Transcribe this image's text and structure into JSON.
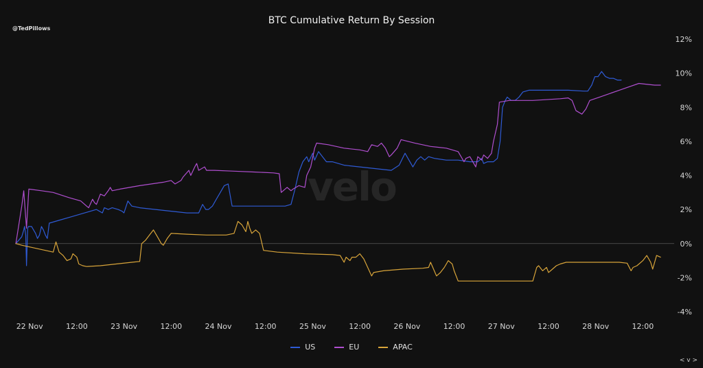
{
  "handle": "@TedPillows",
  "watermark": "velo",
  "corner_toggle": "< v >",
  "chart_data": {
    "type": "line",
    "title": "BTC Cumulative Return By Session",
    "y_tick_labels": [
      "12%",
      "10%",
      "8%",
      "6%",
      "4%",
      "2%",
      "0%",
      "-2%",
      "-4%"
    ],
    "y_ticks": [
      12,
      10,
      8,
      6,
      4,
      2,
      0,
      -2,
      -4
    ],
    "ylim": [
      -4,
      12
    ],
    "x_tick_labels": [
      "22 Nov",
      "12:00",
      "23 Nov",
      "12:00",
      "24 Nov",
      "12:00",
      "25 Nov",
      "12:00",
      "26 Nov",
      "12:00",
      "27 Nov",
      "12:00",
      "28 Nov",
      "12:00"
    ],
    "x_ticks": [
      0,
      12,
      24,
      36,
      48,
      60,
      72,
      84,
      96,
      108,
      120,
      132,
      144,
      156
    ],
    "xlim": [
      -3.7,
      161
    ],
    "zero_line": true,
    "grid": false,
    "legend_position": "bottom-center",
    "series": [
      {
        "name": "US",
        "color": "#2f5bd6",
        "points": [
          [
            -3.5,
            0.0
          ],
          [
            -2.0,
            0.4
          ],
          [
            -1.5,
            0.8
          ],
          [
            -1.3,
            1.0
          ],
          [
            -1.0,
            0.5
          ],
          [
            -0.8,
            -1.3
          ],
          [
            -0.5,
            0.9
          ],
          [
            -0.3,
            1.0
          ],
          [
            0.5,
            1.0
          ],
          [
            1.5,
            0.6
          ],
          [
            2.0,
            0.3
          ],
          [
            2.5,
            0.5
          ],
          [
            3.0,
            1.0
          ],
          [
            3.5,
            0.8
          ],
          [
            4.0,
            0.5
          ],
          [
            4.5,
            0.3
          ],
          [
            5.0,
            1.2
          ],
          [
            8.0,
            1.4
          ],
          [
            11.0,
            1.6
          ],
          [
            14.0,
            1.8
          ],
          [
            17.0,
            2.0
          ],
          [
            18.5,
            1.8
          ],
          [
            19.0,
            2.1
          ],
          [
            20.0,
            2.0
          ],
          [
            21.0,
            2.1
          ],
          [
            22.5,
            2.0
          ],
          [
            23.5,
            1.9
          ],
          [
            24.0,
            1.8
          ],
          [
            25.0,
            2.5
          ],
          [
            26.0,
            2.2
          ],
          [
            28.0,
            2.1
          ],
          [
            32.0,
            2.0
          ],
          [
            36.0,
            1.9
          ],
          [
            40.0,
            1.8
          ],
          [
            43.0,
            1.8
          ],
          [
            44.0,
            2.3
          ],
          [
            44.8,
            2.0
          ],
          [
            45.5,
            2.0
          ],
          [
            46.5,
            2.2
          ],
          [
            47.5,
            2.6
          ],
          [
            48.5,
            3.0
          ],
          [
            49.5,
            3.4
          ],
          [
            50.5,
            3.5
          ],
          [
            51.5,
            2.2
          ],
          [
            55.0,
            2.2
          ],
          [
            60.0,
            2.2
          ],
          [
            65.0,
            2.2
          ],
          [
            66.5,
            2.3
          ],
          [
            67.5,
            3.2
          ],
          [
            68.5,
            4.2
          ],
          [
            69.5,
            4.8
          ],
          [
            70.5,
            5.1
          ],
          [
            71.0,
            4.8
          ],
          [
            72.0,
            5.3
          ],
          [
            72.5,
            4.9
          ],
          [
            73.5,
            5.4
          ],
          [
            74.5,
            5.1
          ],
          [
            75.5,
            4.8
          ],
          [
            77.0,
            4.8
          ],
          [
            80.0,
            4.6
          ],
          [
            84.0,
            4.5
          ],
          [
            88.0,
            4.4
          ],
          [
            92.0,
            4.3
          ],
          [
            94.0,
            4.6
          ],
          [
            95.5,
            5.3
          ],
          [
            96.5,
            4.9
          ],
          [
            97.5,
            4.5
          ],
          [
            98.5,
            4.9
          ],
          [
            99.5,
            5.1
          ],
          [
            100.5,
            4.9
          ],
          [
            101.5,
            5.1
          ],
          [
            103.0,
            5.0
          ],
          [
            106.0,
            4.9
          ],
          [
            109.0,
            4.9
          ],
          [
            112.0,
            4.8
          ],
          [
            114.0,
            4.8
          ],
          [
            115.0,
            5.0
          ],
          [
            115.5,
            4.7
          ],
          [
            116.5,
            4.8
          ],
          [
            117.0,
            4.8
          ],
          [
            118.0,
            4.8
          ],
          [
            119.0,
            5.0
          ],
          [
            119.7,
            6.0
          ],
          [
            120.3,
            8.0
          ],
          [
            121.0,
            8.4
          ],
          [
            121.5,
            8.6
          ],
          [
            122.5,
            8.4
          ],
          [
            123.5,
            8.4
          ],
          [
            124.5,
            8.6
          ],
          [
            125.5,
            8.9
          ],
          [
            127.0,
            9.0
          ],
          [
            132.0,
            9.0
          ],
          [
            137.0,
            9.0
          ],
          [
            141.0,
            8.95
          ],
          [
            142.0,
            8.95
          ],
          [
            143.0,
            9.3
          ],
          [
            143.8,
            9.8
          ],
          [
            144.6,
            9.8
          ],
          [
            145.5,
            10.1
          ],
          [
            146.5,
            9.8
          ],
          [
            147.5,
            9.7
          ],
          [
            148.5,
            9.7
          ],
          [
            149.5,
            9.6
          ],
          [
            150.5,
            9.6
          ]
        ]
      },
      {
        "name": "EU",
        "color": "#b04fd0",
        "points": [
          [
            -3.5,
            0.0
          ],
          [
            -2.0,
            2.2
          ],
          [
            -1.5,
            3.1
          ],
          [
            -0.8,
            0.9
          ],
          [
            -0.2,
            3.2
          ],
          [
            3.0,
            3.1
          ],
          [
            6.0,
            3.0
          ],
          [
            10.0,
            2.7
          ],
          [
            13.0,
            2.5
          ],
          [
            14.5,
            2.2
          ],
          [
            15.0,
            2.1
          ],
          [
            16.0,
            2.6
          ],
          [
            16.5,
            2.4
          ],
          [
            17.0,
            2.3
          ],
          [
            18.0,
            2.9
          ],
          [
            19.0,
            2.8
          ],
          [
            20.0,
            3.1
          ],
          [
            20.5,
            3.3
          ],
          [
            21.0,
            3.1
          ],
          [
            23.0,
            3.2
          ],
          [
            28.0,
            3.4
          ],
          [
            34.0,
            3.6
          ],
          [
            36.0,
            3.7
          ],
          [
            37.0,
            3.5
          ],
          [
            38.5,
            3.7
          ],
          [
            39.0,
            3.9
          ],
          [
            40.5,
            4.3
          ],
          [
            41.0,
            4.0
          ],
          [
            42.0,
            4.5
          ],
          [
            42.5,
            4.7
          ],
          [
            43.0,
            4.3
          ],
          [
            44.5,
            4.5
          ],
          [
            45.0,
            4.3
          ],
          [
            47.0,
            4.3
          ],
          [
            52.0,
            4.25
          ],
          [
            57.0,
            4.2
          ],
          [
            62.0,
            4.15
          ],
          [
            63.5,
            4.1
          ],
          [
            64.0,
            3.0
          ],
          [
            64.5,
            3.1
          ],
          [
            65.5,
            3.3
          ],
          [
            66.5,
            3.1
          ],
          [
            67.0,
            3.2
          ],
          [
            68.5,
            3.4
          ],
          [
            70.0,
            3.3
          ],
          [
            70.5,
            4.0
          ],
          [
            71.5,
            4.5
          ],
          [
            72.5,
            5.6
          ],
          [
            73.0,
            5.9
          ],
          [
            76.0,
            5.8
          ],
          [
            80.0,
            5.6
          ],
          [
            84.0,
            5.5
          ],
          [
            86.0,
            5.4
          ],
          [
            87.0,
            5.8
          ],
          [
            88.5,
            5.7
          ],
          [
            89.5,
            5.9
          ],
          [
            90.5,
            5.6
          ],
          [
            91.5,
            5.1
          ],
          [
            92.0,
            5.2
          ],
          [
            93.5,
            5.6
          ],
          [
            94.5,
            6.1
          ],
          [
            98.0,
            5.9
          ],
          [
            102.0,
            5.7
          ],
          [
            106.0,
            5.6
          ],
          [
            109.0,
            5.4
          ],
          [
            110.5,
            4.8
          ],
          [
            111.0,
            5.0
          ],
          [
            112.0,
            5.1
          ],
          [
            113.5,
            4.5
          ],
          [
            114.0,
            5.1
          ],
          [
            115.0,
            4.9
          ],
          [
            115.5,
            5.2
          ],
          [
            116.5,
            5.0
          ],
          [
            117.5,
            5.3
          ],
          [
            118.0,
            6.0
          ],
          [
            119.0,
            7.0
          ],
          [
            119.5,
            8.3
          ],
          [
            122.0,
            8.4
          ],
          [
            128.0,
            8.4
          ],
          [
            135.0,
            8.5
          ],
          [
            137.0,
            8.55
          ],
          [
            138.0,
            8.4
          ],
          [
            139.0,
            7.8
          ],
          [
            140.5,
            7.6
          ],
          [
            141.5,
            7.9
          ],
          [
            142.5,
            8.4
          ],
          [
            145.0,
            8.6
          ],
          [
            150.0,
            9.0
          ],
          [
            155.0,
            9.4
          ],
          [
            159.0,
            9.3
          ],
          [
            160.5,
            9.3
          ]
        ]
      },
      {
        "name": "APAC",
        "color": "#d9a53a",
        "points": [
          [
            -3.5,
            0.0
          ],
          [
            -2.0,
            -0.1
          ],
          [
            0.0,
            -0.2
          ],
          [
            2.0,
            -0.3
          ],
          [
            4.0,
            -0.4
          ],
          [
            6.0,
            -0.5
          ],
          [
            6.7,
            0.1
          ],
          [
            7.5,
            -0.5
          ],
          [
            8.5,
            -0.7
          ],
          [
            9.5,
            -1.0
          ],
          [
            10.5,
            -0.9
          ],
          [
            11.0,
            -0.6
          ],
          [
            12.0,
            -0.8
          ],
          [
            12.5,
            -1.2
          ],
          [
            13.5,
            -1.3
          ],
          [
            14.5,
            -1.35
          ],
          [
            18.0,
            -1.3
          ],
          [
            22.0,
            -1.2
          ],
          [
            26.0,
            -1.1
          ],
          [
            28.0,
            -1.05
          ],
          [
            28.5,
            0.0
          ],
          [
            29.5,
            0.2
          ],
          [
            30.5,
            0.5
          ],
          [
            31.5,
            0.8
          ],
          [
            32.5,
            0.4
          ],
          [
            33.5,
            0.0
          ],
          [
            34.0,
            -0.1
          ],
          [
            35.0,
            0.3
          ],
          [
            36.0,
            0.6
          ],
          [
            40.0,
            0.55
          ],
          [
            45.0,
            0.5
          ],
          [
            50.0,
            0.5
          ],
          [
            52.0,
            0.6
          ],
          [
            53.0,
            1.3
          ],
          [
            53.5,
            1.2
          ],
          [
            54.0,
            1.1
          ],
          [
            55.0,
            0.7
          ],
          [
            55.5,
            1.3
          ],
          [
            56.0,
            0.9
          ],
          [
            56.5,
            0.6
          ],
          [
            57.5,
            0.8
          ],
          [
            58.5,
            0.6
          ],
          [
            59.5,
            -0.4
          ],
          [
            63.0,
            -0.5
          ],
          [
            70.0,
            -0.6
          ],
          [
            77.0,
            -0.65
          ],
          [
            79.0,
            -0.7
          ],
          [
            80.0,
            -1.1
          ],
          [
            80.5,
            -0.8
          ],
          [
            81.5,
            -1.0
          ],
          [
            82.0,
            -0.8
          ],
          [
            83.0,
            -0.8
          ],
          [
            84.0,
            -0.6
          ],
          [
            85.0,
            -0.9
          ],
          [
            86.0,
            -1.4
          ],
          [
            87.0,
            -1.9
          ],
          [
            87.5,
            -1.7
          ],
          [
            90.0,
            -1.6
          ],
          [
            95.0,
            -1.5
          ],
          [
            100.0,
            -1.45
          ],
          [
            101.5,
            -1.4
          ],
          [
            102.0,
            -1.1
          ],
          [
            103.5,
            -1.9
          ],
          [
            104.5,
            -1.7
          ],
          [
            105.5,
            -1.4
          ],
          [
            106.5,
            -1.0
          ],
          [
            107.5,
            -1.2
          ],
          [
            108.0,
            -1.6
          ],
          [
            109.0,
            -2.2
          ],
          [
            112.0,
            -2.2
          ],
          [
            116.0,
            -2.2
          ],
          [
            120.0,
            -2.2
          ],
          [
            124.0,
            -2.2
          ],
          [
            126.0,
            -2.2
          ],
          [
            128.0,
            -2.2
          ],
          [
            129.0,
            -1.4
          ],
          [
            129.5,
            -1.3
          ],
          [
            130.5,
            -1.6
          ],
          [
            131.5,
            -1.4
          ],
          [
            132.0,
            -1.7
          ],
          [
            133.0,
            -1.5
          ],
          [
            134.0,
            -1.3
          ],
          [
            135.0,
            -1.2
          ],
          [
            136.5,
            -1.1
          ],
          [
            140.0,
            -1.1
          ],
          [
            145.0,
            -1.1
          ],
          [
            150.0,
            -1.1
          ],
          [
            152.0,
            -1.15
          ],
          [
            153.0,
            -1.6
          ],
          [
            153.5,
            -1.4
          ],
          [
            154.5,
            -1.3
          ],
          [
            156.0,
            -1.0
          ],
          [
            157.0,
            -0.7
          ],
          [
            158.0,
            -1.1
          ],
          [
            158.5,
            -1.5
          ],
          [
            159.5,
            -0.7
          ],
          [
            160.5,
            -0.8
          ]
        ]
      }
    ]
  }
}
